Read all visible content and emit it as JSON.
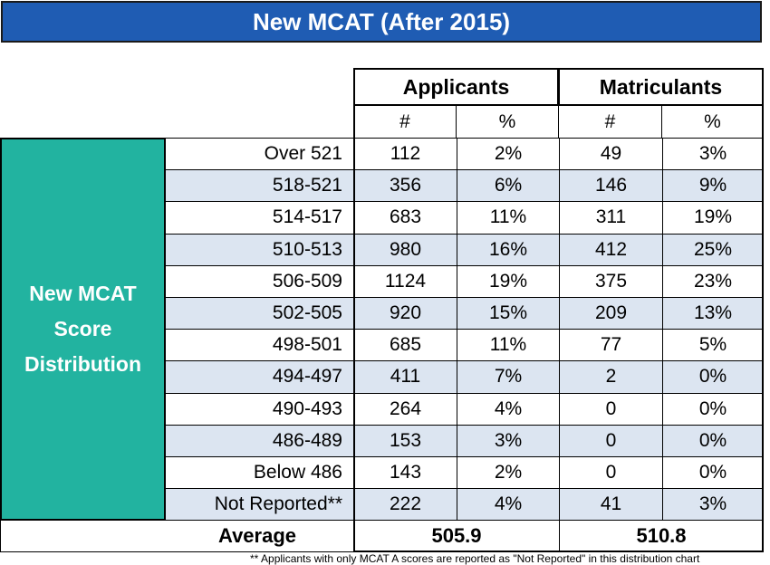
{
  "title": "New MCAT (After 2015)",
  "side_label": "New MCAT Score Distribution",
  "group_headers": [
    "Applicants",
    "Matriculants"
  ],
  "sub_headers": [
    "#",
    "%",
    "#",
    "%"
  ],
  "rows": [
    {
      "range": "Over 521",
      "app_n": "112",
      "app_pct": "2%",
      "mat_n": "49",
      "mat_pct": "3%"
    },
    {
      "range": "518-521",
      "app_n": "356",
      "app_pct": "6%",
      "mat_n": "146",
      "mat_pct": "9%"
    },
    {
      "range": "514-517",
      "app_n": "683",
      "app_pct": "11%",
      "mat_n": "311",
      "mat_pct": "19%"
    },
    {
      "range": "510-513",
      "app_n": "980",
      "app_pct": "16%",
      "mat_n": "412",
      "mat_pct": "25%"
    },
    {
      "range": "506-509",
      "app_n": "1124",
      "app_pct": "19%",
      "mat_n": "375",
      "mat_pct": "23%"
    },
    {
      "range": "502-505",
      "app_n": "920",
      "app_pct": "15%",
      "mat_n": "209",
      "mat_pct": "13%"
    },
    {
      "range": "498-501",
      "app_n": "685",
      "app_pct": "11%",
      "mat_n": "77",
      "mat_pct": "5%"
    },
    {
      "range": "494-497",
      "app_n": "411",
      "app_pct": "7%",
      "mat_n": "2",
      "mat_pct": "0%"
    },
    {
      "range": "490-493",
      "app_n": "264",
      "app_pct": "4%",
      "mat_n": "0",
      "mat_pct": "0%"
    },
    {
      "range": "486-489",
      "app_n": "153",
      "app_pct": "3%",
      "mat_n": "0",
      "mat_pct": "0%"
    },
    {
      "range": "Below 486",
      "app_n": "143",
      "app_pct": "2%",
      "mat_n": "0",
      "mat_pct": "0%"
    },
    {
      "range": "Not Reported**",
      "app_n": "222",
      "app_pct": "4%",
      "mat_n": "41",
      "mat_pct": "3%"
    }
  ],
  "average": {
    "label": "Average",
    "applicants": "505.9",
    "matriculants": "510.8"
  },
  "footnote": "** Applicants with only MCAT A scores are reported as \"Not Reported\" in this distribution chart",
  "colors": {
    "banner": "#1f5cb3",
    "side_label_bg": "#22b3a0",
    "row_shade": "#dce5f1"
  }
}
